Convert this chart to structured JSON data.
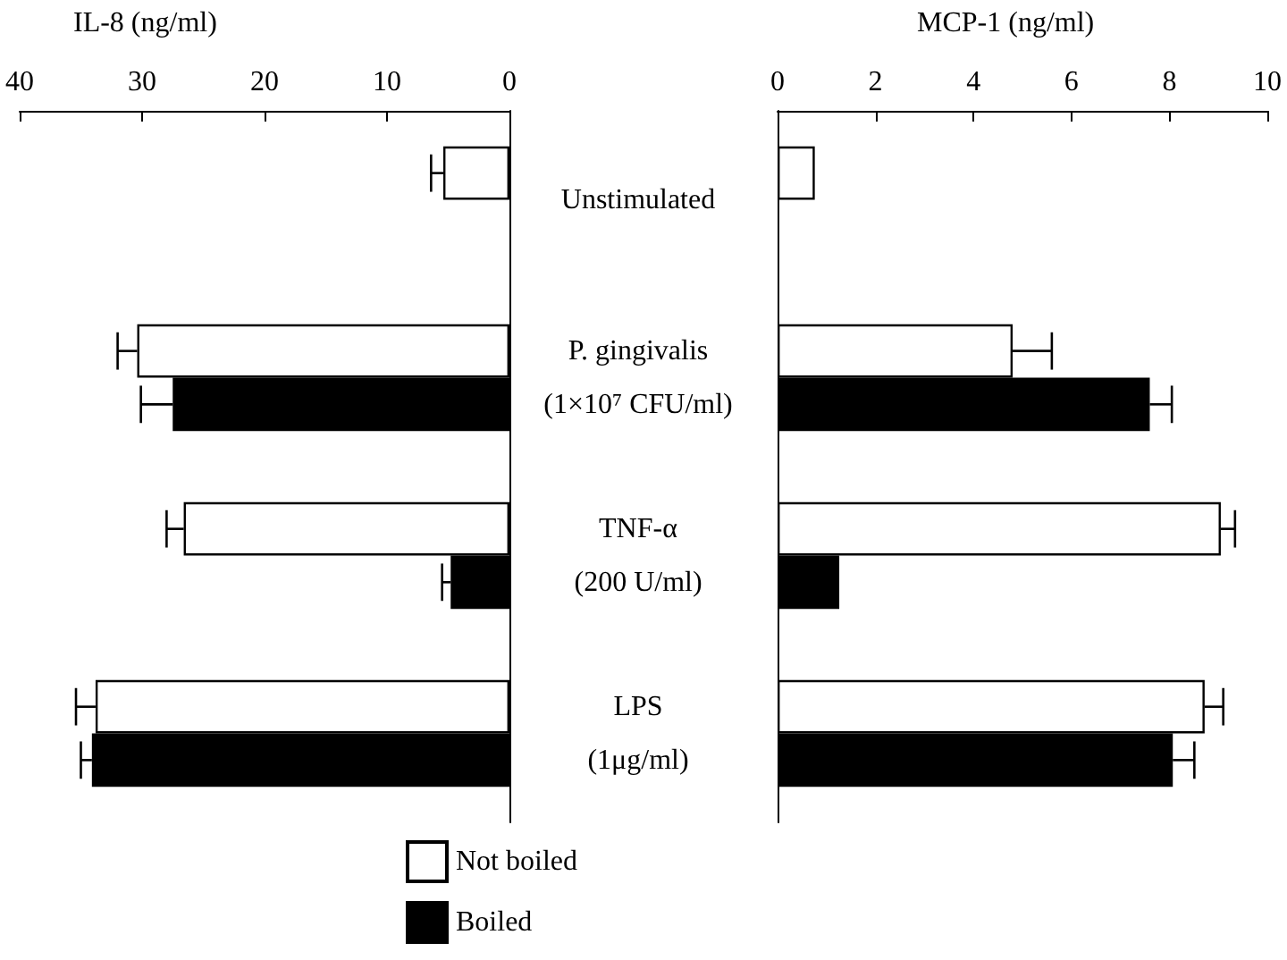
{
  "chart_data": [
    {
      "type": "bar",
      "orientation": "horizontal",
      "xlabel": "IL-8 (ng/ml)",
      "categories": [
        "Unstimulated",
        "P. gingivalis\n(1×10⁷ CFU/ml)",
        "TNF-α\n(200 U/ml)",
        "LPS\n(1μg/ml)"
      ],
      "xlim": [
        40,
        0
      ],
      "xticks": [
        40,
        30,
        20,
        10,
        0
      ],
      "grid": false,
      "legend": "bottom",
      "series": [
        {
          "name": "Not boiled",
          "color": "#ffffff",
          "values": [
            5.4,
            30.4,
            26.6,
            33.8
          ],
          "errors": [
            [
              5.4,
              6.4
            ],
            [
              30.4,
              32.0
            ],
            [
              26.6,
              28.0
            ],
            [
              33.8,
              35.4
            ]
          ]
        },
        {
          "name": "Boiled",
          "color": "#000000",
          "values": [
            null,
            27.5,
            4.8,
            34.1
          ],
          "errors": [
            null,
            [
              27.5,
              30.1
            ],
            [
              4.8,
              5.5
            ],
            [
              34.1,
              35.0
            ]
          ]
        }
      ]
    },
    {
      "type": "bar",
      "orientation": "horizontal",
      "xlabel": "MCP-1 (ng/ml)",
      "categories": [
        null,
        null,
        null,
        null
      ],
      "xlim": [
        0,
        10
      ],
      "xticks": [
        0,
        2,
        4,
        6,
        8,
        10
      ],
      "grid": false,
      "tick_labels": "x",
      "series": [
        {
          "color": "#ffffff",
          "values": [
            0.76,
            4.8,
            9.05,
            8.72
          ],
          "errors": [
            null,
            [
              4.8,
              5.6
            ],
            [
              9.05,
              9.34
            ],
            [
              8.72,
              9.1
            ]
          ]
        },
        {
          "color": "#000000",
          "values": [
            null,
            7.6,
            1.26,
            8.07
          ],
          "errors": [
            null,
            [
              7.6,
              8.05
            ],
            null,
            [
              8.07,
              8.51
            ]
          ]
        }
      ]
    }
  ]
}
